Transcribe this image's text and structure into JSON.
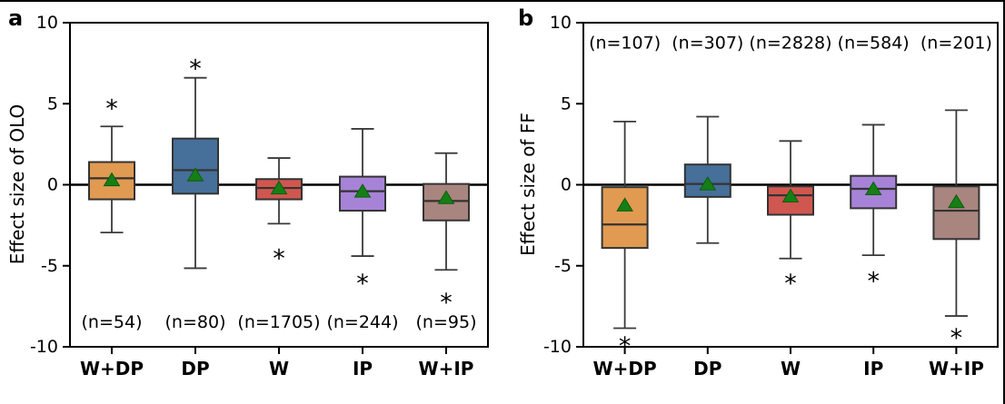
{
  "figure": {
    "background": "#ffffff",
    "border_color": "#000000"
  },
  "style": {
    "mean_marker": "triangle-up",
    "mean_marker_color": "#157f15",
    "mean_marker_edge_color": "#0d5c0d",
    "box_edge_color": "#333333",
    "whisker_color": "#3a3a3a",
    "zero_line_color": "#000000",
    "axis_color": "#000000",
    "text_color": "#000000",
    "sig_marker": "*"
  },
  "chart_data": [
    {
      "type": "box",
      "panel_label": "a",
      "ylabel": "Effect size of OLO",
      "ylim": [
        -10,
        10
      ],
      "yticks": [
        -10,
        -5,
        0,
        5,
        10
      ],
      "zero_line": true,
      "grid": false,
      "legend": null,
      "categories": [
        "W+DP",
        "DP",
        "W",
        "IP",
        "W+IP"
      ],
      "n_labels": [
        "(n=54)",
        "(n=80)",
        "(n=1705)",
        "(n=244)",
        "(n=95)"
      ],
      "n_label_y": -8.5,
      "series": [
        {
          "category": "W+DP",
          "color": "#e19a51",
          "whisker_low": -2.95,
          "q1": -0.9,
          "median": 0.4,
          "q3": 1.4,
          "whisker_high": 3.6,
          "mean": 0.3,
          "sig_star_y": 5.1
        },
        {
          "category": "DP",
          "color": "#466f99",
          "whisker_low": -5.15,
          "q1": -0.55,
          "median": 0.9,
          "q3": 2.85,
          "whisker_high": 6.6,
          "mean": 0.6,
          "sig_star_y": 7.55
        },
        {
          "category": "W",
          "color": "#d0574f",
          "whisker_low": -2.4,
          "q1": -0.9,
          "median": -0.2,
          "q3": 0.35,
          "whisker_high": 1.65,
          "mean": -0.2,
          "sig_star_y": -4.15
        },
        {
          "category": "IP",
          "color": "#a783d8",
          "whisker_low": -4.4,
          "q1": -1.6,
          "median": -0.4,
          "q3": 0.5,
          "whisker_high": 3.45,
          "mean": -0.4,
          "sig_star_y": -5.7
        },
        {
          "category": "W+IP",
          "color": "#a9857f",
          "whisker_low": -5.25,
          "q1": -2.2,
          "median": -1.0,
          "q3": 0.05,
          "whisker_high": 1.95,
          "mean": -0.8,
          "sig_star_y": -6.85
        }
      ]
    },
    {
      "type": "box",
      "panel_label": "b",
      "ylabel": "Effect size of FF",
      "ylim": [
        -10,
        10
      ],
      "yticks": [
        -10,
        -5,
        0,
        5,
        10
      ],
      "zero_line": true,
      "grid": false,
      "legend": null,
      "categories": [
        "W+DP",
        "DP",
        "W",
        "IP",
        "W+IP"
      ],
      "n_labels": [
        "(n=107)",
        "(n=307)",
        "(n=2828)",
        "(n=584)",
        "(n=201)"
      ],
      "n_label_y": 8.75,
      "series": [
        {
          "category": "W+DP",
          "color": "#e19a51",
          "whisker_low": -8.85,
          "q1": -3.9,
          "median": -2.45,
          "q3": -0.15,
          "whisker_high": 3.9,
          "mean": -1.25,
          "sig_star_y": -9.55
        },
        {
          "category": "DP",
          "color": "#466f99",
          "whisker_low": -3.6,
          "q1": -0.75,
          "median": 0.05,
          "q3": 1.25,
          "whisker_high": 4.2,
          "mean": 0.05,
          "sig_star_y": null
        },
        {
          "category": "W",
          "color": "#d0574f",
          "whisker_low": -4.55,
          "q1": -1.85,
          "median": -0.65,
          "q3": -0.1,
          "whisker_high": 2.7,
          "mean": -0.7,
          "sig_star_y": -5.7
        },
        {
          "category": "IP",
          "color": "#a783d8",
          "whisker_low": -4.35,
          "q1": -1.45,
          "median": -0.25,
          "q3": 0.55,
          "whisker_high": 3.7,
          "mean": -0.25,
          "sig_star_y": -5.55
        },
        {
          "category": "W+IP",
          "color": "#a9857f",
          "whisker_low": -8.1,
          "q1": -3.35,
          "median": -1.6,
          "q3": -0.1,
          "whisker_high": 4.6,
          "mean": -1.05,
          "sig_star_y": -9.05
        }
      ]
    }
  ]
}
